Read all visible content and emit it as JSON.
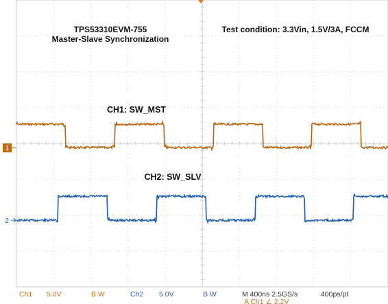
{
  "annotations": {
    "title_line1": "TPS53310EVM-755",
    "title_line2": "Master-Slave Synchronization",
    "test_condition": "Test condition: 3.3Vin, 1.5V/3A, FCCM",
    "ch1_label": "CH1: SW_MST",
    "ch2_label": "CH2: SW_SLV"
  },
  "markers": {
    "ch1": "1",
    "ch2": "2"
  },
  "status_bar": {
    "ch1_name": "Ch1",
    "ch1_scale": "5.0V",
    "ch1_bw": "B W",
    "ch2_name": "Ch2",
    "ch2_scale": "5.0V",
    "ch2_bw": "B W",
    "timebase": "M 400ns 2.5GS/s",
    "record": "400ps/pt",
    "trigger": "A  Ch1  ∠  2.2V"
  },
  "colors": {
    "ch1": "#b8660f",
    "ch2": "#1f5fb0",
    "grid": "#c8c8c8",
    "status_text": "#c07a20",
    "status_text_blue": "#3060b0"
  },
  "waveforms": {
    "period_ns": 1060,
    "duty": 0.5,
    "phase_offset_ns": 450,
    "ch1_level": {
      "high_v": 3.3,
      "low_v": 0
    },
    "ch2_level": {
      "high_v": 3.3,
      "low_v": 0
    }
  }
}
